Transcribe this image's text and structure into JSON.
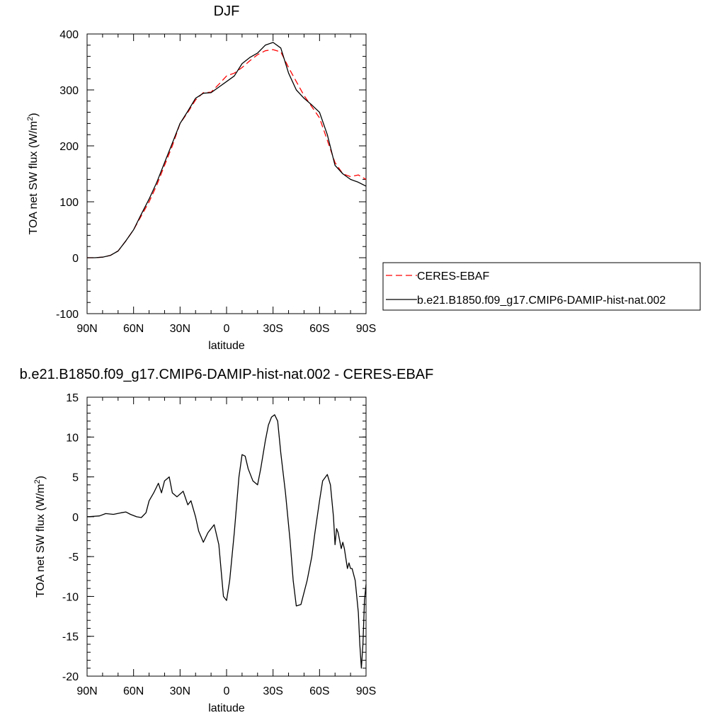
{
  "figure": {
    "top_title": "DJF",
    "bottom_title": "b.e21.B1850.f09_g17.CMIP6-DAMIP-hist-nat.002 - CERES-EBAF"
  },
  "chart_data": [
    {
      "type": "line",
      "title": "DJF",
      "xlabel": "latitude",
      "ylabel": "TOA net SW flux (W/m",
      "ylabel_superscript": "2",
      "ylabel_suffix": ")",
      "xlim": [
        -90,
        90
      ],
      "ylim": [
        -100,
        400
      ],
      "x_ticks": [
        -90,
        -60,
        -30,
        0,
        30,
        60,
        90
      ],
      "x_tick_labels": [
        "90N",
        "60N",
        "30N",
        "0",
        "30S",
        "60S",
        "90S"
      ],
      "y_ticks": [
        -100,
        0,
        100,
        200,
        300,
        400
      ],
      "y_tick_labels": [
        "-100",
        "0",
        "100",
        "200",
        "300",
        "400"
      ],
      "grid": false,
      "legend_position": "right",
      "series": [
        {
          "name": "CERES-EBAF",
          "color": "#ff0000",
          "dash": "dashed",
          "x": [
            -90,
            -85,
            -80,
            -75,
            -70,
            -65,
            -60,
            -55,
            -50,
            -45,
            -40,
            -35,
            -30,
            -25,
            -20,
            -15,
            -10,
            -5,
            0,
            5,
            10,
            15,
            20,
            25,
            30,
            35,
            40,
            45,
            50,
            55,
            60,
            65,
            70,
            75,
            80,
            85,
            90
          ],
          "y": [
            0,
            0,
            1,
            4,
            12,
            30,
            50,
            75,
            100,
            130,
            165,
            200,
            240,
            260,
            282,
            295,
            296,
            310,
            325,
            330,
            340,
            352,
            363,
            370,
            372,
            368,
            340,
            315,
            290,
            270,
            250,
            210,
            170,
            150,
            145,
            148,
            140
          ]
        },
        {
          "name": "b.e21.B1850.f09_g17.CMIP6-DAMIP-hist-nat.002",
          "color": "#000000",
          "dash": "solid",
          "x": [
            -90,
            -85,
            -80,
            -75,
            -70,
            -65,
            -60,
            -55,
            -50,
            -45,
            -40,
            -35,
            -30,
            -25,
            -20,
            -15,
            -10,
            -5,
            0,
            5,
            10,
            15,
            20,
            25,
            30,
            35,
            40,
            45,
            50,
            55,
            60,
            65,
            70,
            75,
            80,
            85,
            90
          ],
          "y": [
            0,
            0,
            1,
            4,
            12,
            30,
            50,
            78,
            105,
            135,
            170,
            205,
            240,
            262,
            285,
            294,
            295,
            305,
            315,
            325,
            347,
            358,
            366,
            380,
            385,
            375,
            330,
            300,
            285,
            273,
            260,
            220,
            165,
            150,
            140,
            135,
            128
          ]
        }
      ]
    },
    {
      "type": "line",
      "title": "b.e21.B1850.f09_g17.CMIP6-DAMIP-hist-nat.002 - CERES-EBAF",
      "xlabel": "latitude",
      "ylabel": "TOA net SW flux (W/m",
      "ylabel_superscript": "2",
      "ylabel_suffix": ")",
      "xlim": [
        -90,
        90
      ],
      "ylim": [
        -20,
        15
      ],
      "x_ticks": [
        -90,
        -60,
        -30,
        0,
        30,
        60,
        90
      ],
      "x_tick_labels": [
        "90N",
        "60N",
        "30N",
        "0",
        "30S",
        "60S",
        "90S"
      ],
      "y_ticks": [
        -20,
        -15,
        -10,
        -5,
        0,
        5,
        10,
        15
      ],
      "y_tick_labels": [
        "-20",
        "-15",
        "-10",
        "-5",
        "0",
        "5",
        "10",
        "15"
      ],
      "grid": false,
      "series": [
        {
          "color": "#000000",
          "dash": "solid",
          "x": [
            -90,
            -82,
            -78,
            -73,
            -68,
            -65,
            -62,
            -58,
            -55,
            -52,
            -50,
            -47,
            -44,
            -42,
            -40,
            -37,
            -35,
            -32,
            -28,
            -25,
            -23,
            -20,
            -18,
            -15,
            -12,
            -10,
            -8,
            -5,
            -2,
            0,
            2,
            5,
            8,
            10,
            12,
            14,
            17,
            20,
            22,
            25,
            27,
            29,
            31,
            33,
            35,
            38,
            41,
            43,
            45,
            48,
            52,
            55,
            57,
            60,
            62,
            65,
            67,
            69,
            70,
            71,
            72,
            74,
            75,
            76,
            78,
            79,
            80,
            81,
            83,
            85,
            86,
            87,
            88,
            89,
            90
          ],
          "y": [
            0,
            0.1,
            0.4,
            0.3,
            0.5,
            0.6,
            0.3,
            0,
            -0.1,
            0.5,
            2,
            3,
            4.2,
            3,
            4.5,
            5,
            3,
            2.5,
            3.2,
            1.5,
            2,
            0,
            -1.8,
            -3.2,
            -2,
            -1.5,
            -1,
            -3.5,
            -10,
            -10.5,
            -8,
            -2,
            5,
            7.8,
            7.6,
            6,
            4.5,
            4,
            6,
            9.5,
            11.5,
            12.5,
            12.8,
            12,
            8,
            3,
            -3,
            -8,
            -11.2,
            -11,
            -8,
            -5,
            -2,
            2,
            4.5,
            5.3,
            4,
            0,
            -3.5,
            -1.5,
            -2,
            -4,
            -3.2,
            -4,
            -6.5,
            -5.8,
            -6.5,
            -6.5,
            -8,
            -12,
            -16,
            -19,
            -16,
            -10.5,
            -8.5
          ]
        }
      ]
    }
  ]
}
